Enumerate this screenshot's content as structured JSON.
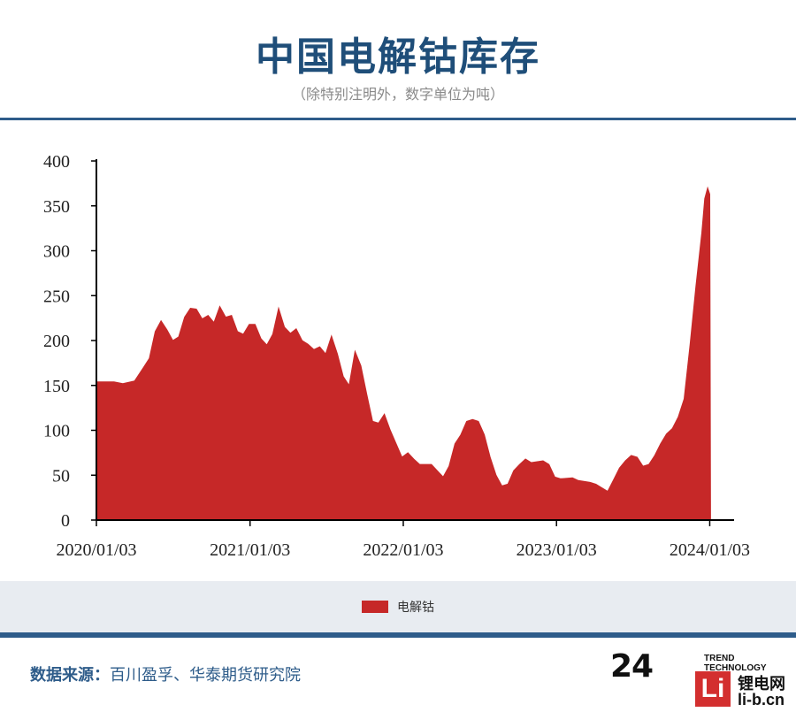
{
  "header": {
    "title": "中国电解钴库存",
    "subtitle": "（除特别注明外，数字单位为吨）"
  },
  "legend": {
    "label": "电解钴",
    "color": "#c62828"
  },
  "footer": {
    "source_label": "数据来源：",
    "source_text": "百川盈孚、华泰期货研究院"
  },
  "logo": {
    "number": "24",
    "trend_text": "TREND TECHNOLOGY",
    "box_letter": "Li",
    "brand_cn": "锂电网",
    "brand_url": "li-b.cn"
  },
  "chart_data": {
    "type": "area",
    "ylim": [
      0,
      400
    ],
    "yticks": [
      0,
      50,
      100,
      150,
      200,
      250,
      300,
      350,
      400
    ],
    "xticks": [
      "2020/01/03",
      "2021/01/03",
      "2022/01/03",
      "2023/01/03",
      "2024/01/03"
    ],
    "xrange": [
      "2020/01/03",
      "2024/03/01"
    ],
    "series": [
      {
        "name": "电解钴",
        "color": "#c62828",
        "points": [
          [
            "2020/01/03",
            154
          ],
          [
            "2020/02/14",
            154
          ],
          [
            "2020/03/06",
            152
          ],
          [
            "2020/04/03",
            155
          ],
          [
            "2020/04/24",
            170
          ],
          [
            "2020/05/08",
            180
          ],
          [
            "2020/05/22",
            210
          ],
          [
            "2020/06/05",
            222
          ],
          [
            "2020/06/19",
            212
          ],
          [
            "2020/07/03",
            200
          ],
          [
            "2020/07/17",
            204
          ],
          [
            "2020/07/31",
            226
          ],
          [
            "2020/08/14",
            236
          ],
          [
            "2020/08/28",
            235
          ],
          [
            "2020/09/11",
            224
          ],
          [
            "2020/09/25",
            228
          ],
          [
            "2020/10/09",
            220
          ],
          [
            "2020/10/23",
            238
          ],
          [
            "2020/11/06",
            226
          ],
          [
            "2020/11/20",
            228
          ],
          [
            "2020/12/04",
            210
          ],
          [
            "2020/12/18",
            207
          ],
          [
            "2021/01/01",
            218
          ],
          [
            "2021/01/15",
            218
          ],
          [
            "2021/01/29",
            202
          ],
          [
            "2021/02/12",
            195
          ],
          [
            "2021/02/26",
            207
          ],
          [
            "2021/03/12",
            236
          ],
          [
            "2021/03/26",
            215
          ],
          [
            "2021/04/09",
            208
          ],
          [
            "2021/04/23",
            213
          ],
          [
            "2021/05/07",
            200
          ],
          [
            "2021/05/21",
            196
          ],
          [
            "2021/06/04",
            190
          ],
          [
            "2021/06/18",
            193
          ],
          [
            "2021/07/02",
            185
          ],
          [
            "2021/07/16",
            205
          ],
          [
            "2021/07/30",
            185
          ],
          [
            "2021/08/13",
            160
          ],
          [
            "2021/08/27",
            150
          ],
          [
            "2021/09/10",
            188
          ],
          [
            "2021/09/24",
            172
          ],
          [
            "2021/10/08",
            140
          ],
          [
            "2021/10/22",
            110
          ],
          [
            "2021/11/05",
            108
          ],
          [
            "2021/11/19",
            118
          ],
          [
            "2021/12/03",
            100
          ],
          [
            "2021/12/17",
            85
          ],
          [
            "2021/12/31",
            70
          ],
          [
            "2022/01/14",
            75
          ],
          [
            "2022/01/28",
            68
          ],
          [
            "2022/02/11",
            62
          ],
          [
            "2022/03/11",
            62
          ],
          [
            "2022/03/25",
            55
          ],
          [
            "2022/04/08",
            48
          ],
          [
            "2022/04/22",
            60
          ],
          [
            "2022/05/06",
            85
          ],
          [
            "2022/05/20",
            95
          ],
          [
            "2022/06/03",
            110
          ],
          [
            "2022/06/17",
            112
          ],
          [
            "2022/07/01",
            110
          ],
          [
            "2022/07/15",
            95
          ],
          [
            "2022/07/29",
            70
          ],
          [
            "2022/08/12",
            50
          ],
          [
            "2022/08/26",
            38
          ],
          [
            "2022/09/09",
            40
          ],
          [
            "2022/09/23",
            55
          ],
          [
            "2022/10/07",
            62
          ],
          [
            "2022/10/21",
            68
          ],
          [
            "2022/11/04",
            64
          ],
          [
            "2022/12/02",
            66
          ],
          [
            "2022/12/16",
            62
          ],
          [
            "2022/12/30",
            48
          ],
          [
            "2023/01/13",
            46
          ],
          [
            "2023/02/10",
            47
          ],
          [
            "2023/02/24",
            44
          ],
          [
            "2023/03/24",
            42
          ],
          [
            "2023/04/07",
            40
          ],
          [
            "2023/04/21",
            36
          ],
          [
            "2023/05/05",
            32
          ],
          [
            "2023/05/19",
            45
          ],
          [
            "2023/06/02",
            58
          ],
          [
            "2023/06/16",
            66
          ],
          [
            "2023/06/30",
            72
          ],
          [
            "2023/07/14",
            70
          ],
          [
            "2023/07/28",
            60
          ],
          [
            "2023/08/11",
            62
          ],
          [
            "2023/08/25",
            72
          ],
          [
            "2023/09/08",
            85
          ],
          [
            "2023/09/22",
            96
          ],
          [
            "2023/10/06",
            102
          ],
          [
            "2023/10/20",
            115
          ],
          [
            "2023/11/03",
            135
          ],
          [
            "2023/11/17",
            195
          ],
          [
            "2023/12/01",
            260
          ],
          [
            "2023/12/15",
            320
          ],
          [
            "2023/12/22",
            358
          ],
          [
            "2023/12/29",
            370
          ],
          [
            "2024/01/03",
            363
          ],
          [
            "2024/01/05",
            0
          ]
        ]
      }
    ]
  }
}
